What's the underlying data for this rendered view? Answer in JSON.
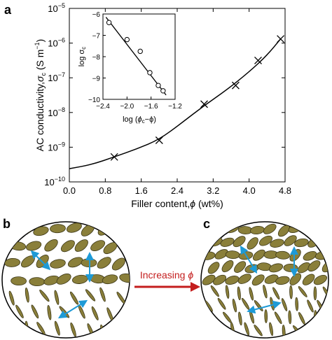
{
  "panel_labels": {
    "a": "a",
    "b": "b",
    "c": "c"
  },
  "arrow_label": {
    "prefix": "Increasing ",
    "symbol": "ϕ"
  },
  "colors": {
    "ellipse_fill": "#8a7f3a",
    "ellipse_stroke": "#3d3818",
    "double_arrow": "#1e9ad6",
    "red_arrow": "#c41e1e",
    "curve": "#000000"
  },
  "chart_data": [
    {
      "type": "scatter",
      "title": "",
      "xlabel": "Filler content,",
      "xlabel_symbol": "ϕ",
      "xlabel_unit": " (wt%)",
      "ylabel": "AC conductivity,",
      "ylabel_symbol": "σ",
      "ylabel_sub": "c",
      "ylabel_unit": " (S m",
      "ylabel_unit_sup": "−1",
      "ylabel_unit_close": ")",
      "yscale": "log",
      "xlim": [
        0.0,
        4.8
      ],
      "ylim_exp": [
        -10,
        -5
      ],
      "xticks": [
        "0.0",
        "0.8",
        "1.6",
        "2.4",
        "3.2",
        "4.0",
        "4.8"
      ],
      "ytick_base": "10",
      "yticks_exp": [
        "−10",
        "−9",
        "−8",
        "−7",
        "−6",
        "−5"
      ],
      "marker": "x",
      "points": [
        {
          "x": 1.0,
          "log10y": -9.28
        },
        {
          "x": 2.0,
          "log10y": -8.8
        },
        {
          "x": 3.0,
          "log10y": -7.76
        },
        {
          "x": 3.7,
          "log10y": -7.22
        },
        {
          "x": 4.2,
          "log10y": -6.5
        },
        {
          "x": 4.7,
          "log10y": -5.88
        }
      ],
      "curve": [
        {
          "x": 0.0,
          "log10y": -9.62
        },
        {
          "x": 0.5,
          "log10y": -9.5
        },
        {
          "x": 1.0,
          "log10y": -9.28
        },
        {
          "x": 1.5,
          "log10y": -9.05
        },
        {
          "x": 2.0,
          "log10y": -8.78
        },
        {
          "x": 2.5,
          "log10y": -8.3
        },
        {
          "x": 3.0,
          "log10y": -7.8
        },
        {
          "x": 3.5,
          "log10y": -7.35
        },
        {
          "x": 4.0,
          "log10y": -6.83
        },
        {
          "x": 4.4,
          "log10y": -6.35
        },
        {
          "x": 4.7,
          "log10y": -5.88
        }
      ]
    },
    {
      "type": "scatter",
      "title": "",
      "inset": true,
      "xlabel": "log (",
      "xlabel_symbols": "ϕ",
      "xlabel_sub": "c",
      "xlabel_tail": "−ϕ)",
      "ylabel": "log σ",
      "ylabel_sub": "c",
      "xlim": [
        -2.4,
        -1.2
      ],
      "ylim": [
        -10,
        -6
      ],
      "xticks": [
        "−2.4",
        "−2.0",
        "−1.6",
        "−1.2"
      ],
      "yticks": [
        "−6",
        "−7",
        "−8",
        "−9",
        "−10"
      ],
      "marker": "o",
      "points": [
        {
          "x": -2.3,
          "y": -6.4
        },
        {
          "x": -2.0,
          "y": -7.2
        },
        {
          "x": -1.78,
          "y": -7.75
        },
        {
          "x": -1.62,
          "y": -8.75
        },
        {
          "x": -1.48,
          "y": -9.35
        },
        {
          "x": -1.4,
          "y": -9.6
        }
      ],
      "fit_line": [
        {
          "x": -2.35,
          "y": -6.15
        },
        {
          "x": -1.35,
          "y": -9.8
        }
      ]
    }
  ]
}
